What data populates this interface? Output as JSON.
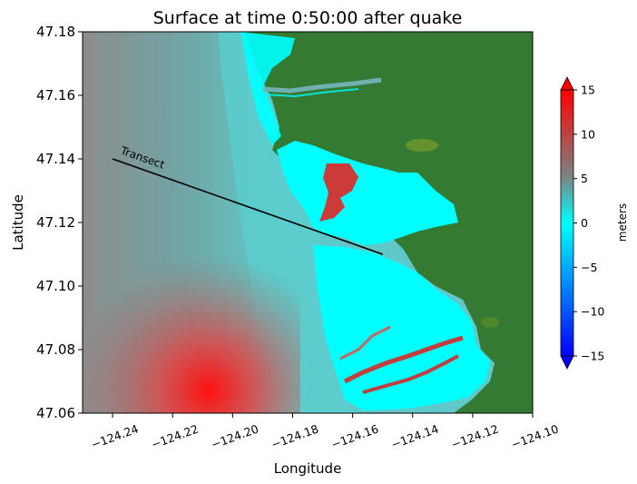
{
  "chart_data": {
    "type": "heatmap",
    "title": "Surface at time 0:50:00 after quake",
    "xlabel": "Longitude",
    "ylabel": "Latitude",
    "xlim": [
      -124.25,
      -124.1
    ],
    "ylim": [
      47.06,
      47.18
    ],
    "x_ticks": [
      -124.24,
      -124.22,
      -124.2,
      -124.18,
      -124.16,
      -124.14,
      -124.12,
      -124.1
    ],
    "x_tick_labels": [
      "−124.24",
      "−124.22",
      "−124.20",
      "−124.18",
      "−124.16",
      "−124.14",
      "−124.12",
      "−124.10"
    ],
    "y_ticks": [
      47.06,
      47.08,
      47.1,
      47.12,
      47.14,
      47.16,
      47.18
    ],
    "y_tick_labels": [
      "47.06",
      "47.08",
      "47.10",
      "47.12",
      "47.14",
      "47.16",
      "47.18"
    ],
    "colorbar": {
      "label": "meters",
      "range": [
        -15,
        15
      ],
      "ticks": [
        -15,
        -10,
        -5,
        0,
        5,
        10,
        15
      ],
      "tick_labels": [
        "−15",
        "−10",
        "−5",
        "0",
        "5",
        "10",
        "15"
      ],
      "colors": [
        "#0000ff",
        "#00ffff",
        "#808080",
        "#ff0000"
      ]
    },
    "land_color": "#357a33",
    "transect": {
      "label": "Transect",
      "start": [
        -124.24,
        47.14
      ],
      "end": [
        -124.15,
        47.11
      ]
    }
  }
}
